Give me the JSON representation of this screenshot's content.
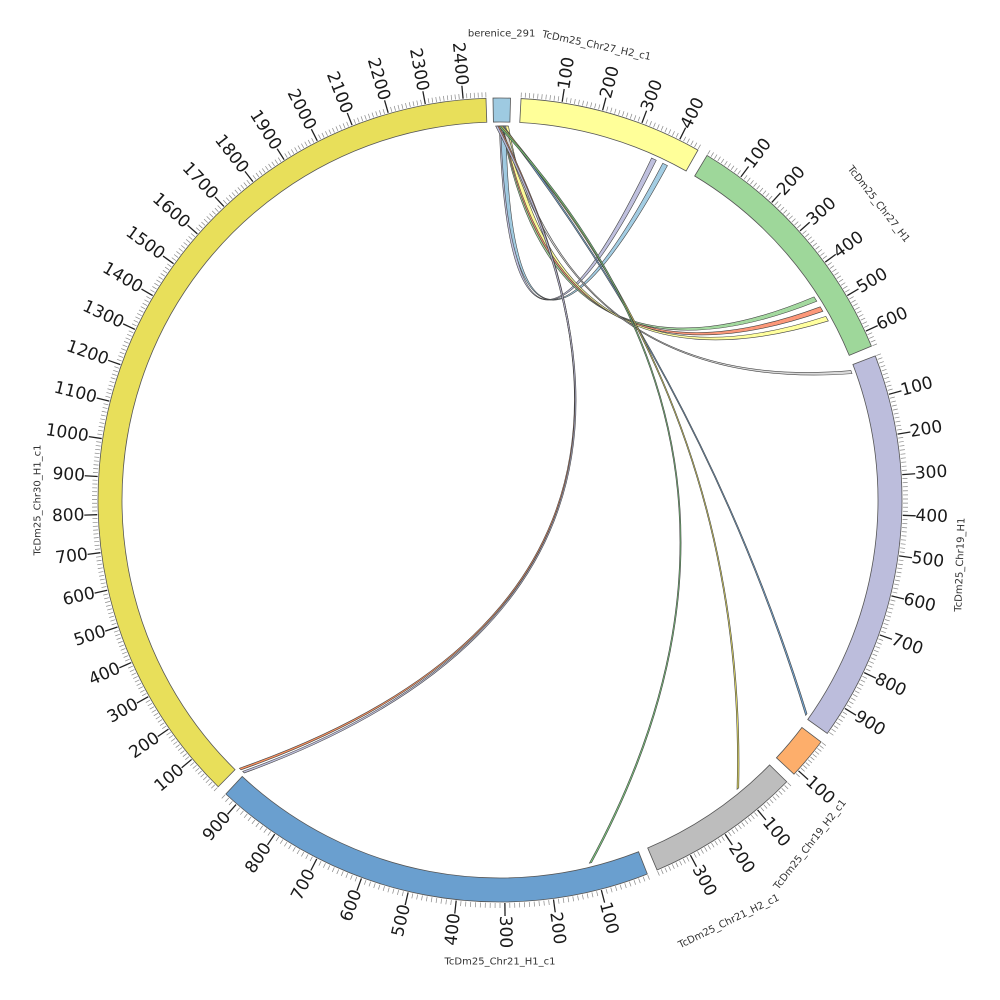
{
  "diagram": {
    "type": "circos",
    "segments": [
      {
        "id": "berenice",
        "label": "berenice_291",
        "color": "#9ecae1",
        "ticks": []
      },
      {
        "id": "chr27h2",
        "label": "TcDm25_Chr27_H2_c1",
        "color": "#ffff99",
        "ticks": [
          "100",
          "200",
          "300",
          "400"
        ]
      },
      {
        "id": "chr27h1",
        "label": "TcDm25_Chr27_H1",
        "color": "#9ed79a",
        "ticks": [
          "100",
          "200",
          "300",
          "400",
          "500",
          "600"
        ]
      },
      {
        "id": "chr19h1",
        "label": "TcDm25_Chr19_H1",
        "color": "#bcbddc",
        "ticks": [
          "100",
          "200",
          "300",
          "400",
          "500",
          "600",
          "700",
          "800",
          "900"
        ]
      },
      {
        "id": "chr19h2",
        "label": "TcDm25_Chr19_H2_c1",
        "color": "#fdae6b",
        "ticks": [
          "100"
        ]
      },
      {
        "id": "chr21h2",
        "label": "TcDm25_Chr21_H2_c1",
        "color": "#bdbdbd",
        "ticks": [
          "100",
          "200",
          "300"
        ]
      },
      {
        "id": "chr21h1",
        "label": "TcDm25_Chr21_H1_c1",
        "color": "#6a9fcf",
        "ticks": [
          "100",
          "200",
          "300",
          "400",
          "500",
          "600",
          "700",
          "800",
          "900"
        ]
      },
      {
        "id": "chr30",
        "label": "TcDm25_Chr30_H1_c1",
        "color": "#e8df5a",
        "ticks": [
          "100",
          "200",
          "300",
          "400",
          "500",
          "600",
          "700",
          "800",
          "900",
          "1000",
          "1100",
          "1200",
          "1300",
          "1400",
          "1500",
          "1600",
          "1700",
          "1800",
          "1900",
          "2000",
          "2100",
          "2200",
          "2300",
          "2400"
        ]
      }
    ],
    "links": [
      {
        "target": "chr27h2",
        "color": "#bcbddc"
      },
      {
        "target": "chr27h2",
        "color": "#9ecae1"
      },
      {
        "target": "chr27h1",
        "color": "#9ed79a"
      },
      {
        "target": "chr27h1",
        "color": "#fc9272"
      },
      {
        "target": "chr27h1",
        "color": "#ffff99"
      },
      {
        "target": "chr19h1",
        "color": "#d9d9d9"
      },
      {
        "target": "chr19h2",
        "color": "#6a9fcf"
      },
      {
        "target": "chr21h2",
        "color": "#e8df5a"
      },
      {
        "target": "chr21h1",
        "color": "#74c476"
      },
      {
        "target": "chr30",
        "color": "#fc8d59"
      },
      {
        "target": "chr30",
        "color": "#bcbddc"
      }
    ]
  }
}
